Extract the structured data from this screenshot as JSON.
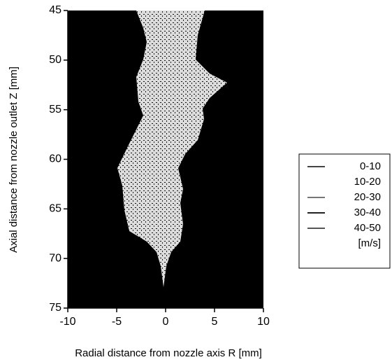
{
  "chart_data": {
    "type": "vector",
    "xlabel": "Radial distance from nozzle axis R [mm]",
    "ylabel": "Axial distance from nozzle outlet Z [mm]",
    "xlim": [
      -10,
      10
    ],
    "xticks": [
      -10,
      -5,
      0,
      5,
      10
    ],
    "ylim": [
      45,
      75
    ],
    "yticks": [
      45,
      50,
      55,
      60,
      65,
      70,
      75
    ],
    "y_inverted": true,
    "background": "#000000",
    "legend": {
      "position": "right",
      "unit": "[m/s]",
      "entries": [
        {
          "name": "0-10",
          "color": "#444444"
        },
        {
          "name": "10-20",
          "color": "#ffffff"
        },
        {
          "name": "20-30",
          "color": "#777777"
        },
        {
          "name": "30-40",
          "color": "#222222"
        },
        {
          "name": "40-50",
          "color": "#555555"
        }
      ]
    }
  }
}
